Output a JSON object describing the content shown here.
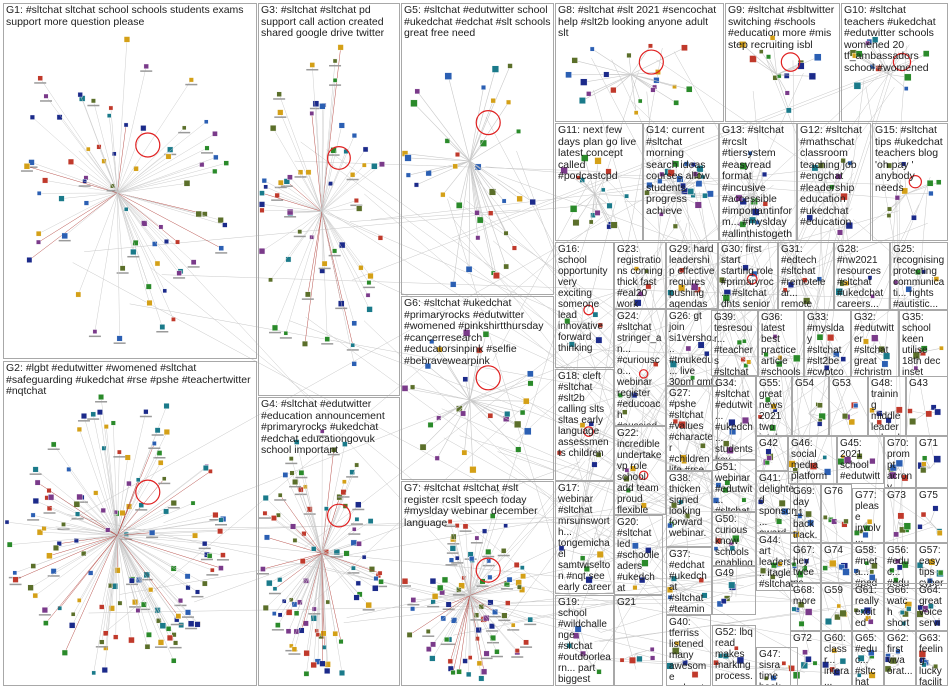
{
  "title": "",
  "colors": {
    "border": "#a8a8a8",
    "edge": "#c8c8c8",
    "edge_strong": "#b0403a",
    "self_loop": "#e02020",
    "node_palette": [
      "#1b2a8a",
      "#2b5fb3",
      "#2a8a2a",
      "#7a3a8a",
      "#c0392b",
      "#1a7a8a",
      "#d4a017",
      "#5b6f2a"
    ]
  },
  "groups": [
    {
      "id": "G1",
      "label": "G1: #sltchat sltchat school schools students exams support more question please"
    },
    {
      "id": "G2",
      "label": "G2: #lgbt #edutwitter #womened #sltchat #safeguarding #ukedchat #rse #pshe #teachertwitter #nqtchat"
    },
    {
      "id": "G3",
      "label": "G3: #sltchat #sltchat pd support call action created shared google drive twitter"
    },
    {
      "id": "G4",
      "label": "G4: #sltchat #edutwitter #education announcement #primaryrocks #ukedchat #edchat educationgovuk school important"
    },
    {
      "id": "G5",
      "label": "G5: #sltchat #edutwitter school #ukedchat #edchat #slt schools great free need"
    },
    {
      "id": "G6",
      "label": "G6: #sltchat #ukedchat #primaryrocks #edutwitter #womened #pinkshirtthursday #cancerresearch #educatorsinpink #selfie #bebravewearpink"
    },
    {
      "id": "G7",
      "label": "G7: #sltchat #sltchat #slt register rcslt speech today #myslday webinar december language"
    },
    {
      "id": "G8",
      "label": "G8: #sltchat #slt 2021 #sencochat help #slt2b looking anyone adult slt"
    },
    {
      "id": "G9",
      "label": "G9: #sltchat #sbltwitter switching #schools #education more #mis step recruiting isbl"
    },
    {
      "id": "G10",
      "label": "G10: #sltchat teachers #ukedchat #edutwitter schools womened 20 tf_ambassadors school #womened"
    },
    {
      "id": "G11",
      "label": "G11: next few days plan go live latest concept called #podcastcpd"
    },
    {
      "id": "G12",
      "label": "G12: #sltchat #mathschat classroom teaching job #engchat #leadership education #ukedchat #education"
    },
    {
      "id": "G13",
      "label": "G13: #sltchat #rcslt #tiersystem #easyread format #incusive #accessible #importantinform... #myslday #allinthistogether"
    },
    {
      "id": "G14",
      "label": "G14: current #sltchat morning search ideas courses allow students progress achieve"
    },
    {
      "id": "G15",
      "label": "G15: #sltchat tips #ukedchat teachers blog 'oh pay ' anybody needs"
    },
    {
      "id": "G16",
      "label": "G16: school opportunity very exciting someone lead innovative forward thinking"
    },
    {
      "id": "G17",
      "label": "G17: webinar #sltchat mrsunsworth... tongemichael samtwiselton #nqt see early career framework"
    },
    {
      "id": "G18",
      "label": "G18: cleft #sltchat #slt2b calling slts sltas early language assessments children"
    },
    {
      "id": "G19",
      "label": "G19: school #wildchallenge #sltchat #outdoorlearn... part biggest schools #citizenscience project"
    },
    {
      "id": "G20",
      "label": "G20: #sltchat led #schoolleaders #ukedchat learning paper looks mrreeddht meteoric rise"
    },
    {
      "id": "G21",
      "label": "G21"
    },
    {
      "id": "G22",
      "label": "G22: incredible undertake vp role school add team proud flexible miss"
    },
    {
      "id": "G23",
      "label": "G23: registrations coming thick fast #eal20 work education miss event #sltchat"
    },
    {
      "id": "G24",
      "label": "G24: #sltchat stringer_an... #curiousco... webinar register #educoach #aussied... #sltchat"
    },
    {
      "id": "G25",
      "label": "G25: recognising protecting communicati... rights #autistic..."
    },
    {
      "id": "G26",
      "label": "G26: gt join si1versho... #tmukedu... live 30pm gmt youtube #edchat #sltchat"
    },
    {
      "id": "G27",
      "label": "G27: #pshe #sltchat #values #character #children life #rse #curriculu..."
    },
    {
      "id": "G28",
      "label": "G28: #nw2021 resources #sltchat #ukedchat careers..."
    },
    {
      "id": "G29",
      "label": "G29: hard leadership effective requires pushing agendas"
    },
    {
      "id": "G30",
      "label": "G30: first start starting role #primaryroc... #sltchat dhts senior leaders..."
    },
    {
      "id": "G31",
      "label": "G31: #edtech #sltchat #remotelear... remote learning platform"
    },
    {
      "id": "G32",
      "label": "G32: #edutwitter #sltchat great #christma... favourite..."
    },
    {
      "id": "G33",
      "label": "G33: #myslday #sltchat #slt2be #cwptcovk... #slcn..."
    },
    {
      "id": "G34",
      "label": "G34: #sltchat #edutwit... #ukedch... students key friday school..."
    },
    {
      "id": "G35",
      "label": "G35: school keen utilise 18th dec inset without..."
    },
    {
      "id": "G36",
      "label": "G36: latest best practice article #schools appeared..."
    },
    {
      "id": "G37",
      "label": "G37: #edchat #ukedchat #sltchat #teaming... #edtech"
    },
    {
      "id": "G38",
      "label": "G38: thicken signed looking forward webinar..."
    },
    {
      "id": "G39",
      "label": "G39: tesresour... #teachers #sltchat free sixth form pshe..."
    },
    {
      "id": "G40",
      "label": "G40: tferriss listened many awesome podcasts..."
    },
    {
      "id": "G41",
      "label": "G41: delighted sponsor... award headtea... year..."
    },
    {
      "id": "G42",
      "label": "G42"
    },
    {
      "id": "G43",
      "label": "G43"
    },
    {
      "id": "G44",
      "label": "G44: art leaders... itagle #sltchat #ukedc... leader..."
    },
    {
      "id": "G45",
      "label": "G45: 2021 school #edutwitter #sltchat..."
    },
    {
      "id": "G46",
      "label": "G46: social media platform use share..."
    },
    {
      "id": "G47",
      "label": "G47: sisra time book observe help..."
    },
    {
      "id": "G48",
      "label": "G48: training middle leader school #sltchat..."
    },
    {
      "id": "G49",
      "label": "G49"
    },
    {
      "id": "G50",
      "label": "G50: curious know schools enabling..."
    },
    {
      "id": "G51",
      "label": "G51: webinar #edutwit... #sltchat seat..."
    },
    {
      "id": "G52",
      "label": "G52: lbq read makes marking process..."
    },
    {
      "id": "G53",
      "label": "G53"
    },
    {
      "id": "G54",
      "label": "G54"
    },
    {
      "id": "G55",
      "label": "G55: great news 2021 two intakes december..."
    },
    {
      "id": "G56",
      "label": "G56: #educ... #educ... #sltch... #educ..."
    },
    {
      "id": "G57",
      "label": "G57: easy tips cyber..."
    },
    {
      "id": "G58",
      "label": "G58: #meta... #peda... #sltch... #educ..."
    },
    {
      "id": "G59",
      "label": "G59"
    },
    {
      "id": "G60",
      "label": "G60: classr... intera... whiteb..."
    },
    {
      "id": "G61",
      "label": "G61: really excited upco..."
    },
    {
      "id": "G62",
      "label": "G62: first viva orat..."
    },
    {
      "id": "G63",
      "label": "G63: feeling lucky facilita..."
    },
    {
      "id": "G64",
      "label": "G64: great voice servin..."
    },
    {
      "id": "G65",
      "label": "G65: #educ... #sltchat #educa..."
    },
    {
      "id": "G66",
      "label": "G66: watch short video..."
    },
    {
      "id": "G67",
      "label": "G67: hey tweeps quick..."
    },
    {
      "id": "G68",
      "label": "G68: more"
    },
    {
      "id": "G69",
      "label": "G69: day 11 back track..."
    },
    {
      "id": "G70",
      "label": "G70: prompt acrony... promp..."
    },
    {
      "id": "G71",
      "label": "G71"
    },
    {
      "id": "G72",
      "label": "G72"
    },
    {
      "id": "G73",
      "label": "G73"
    },
    {
      "id": "G74",
      "label": "G74"
    },
    {
      "id": "G75",
      "label": "G75"
    },
    {
      "id": "G76",
      "label": "G76"
    },
    {
      "id": "G77",
      "label": "G77: please involv... #marj..."
    }
  ]
}
